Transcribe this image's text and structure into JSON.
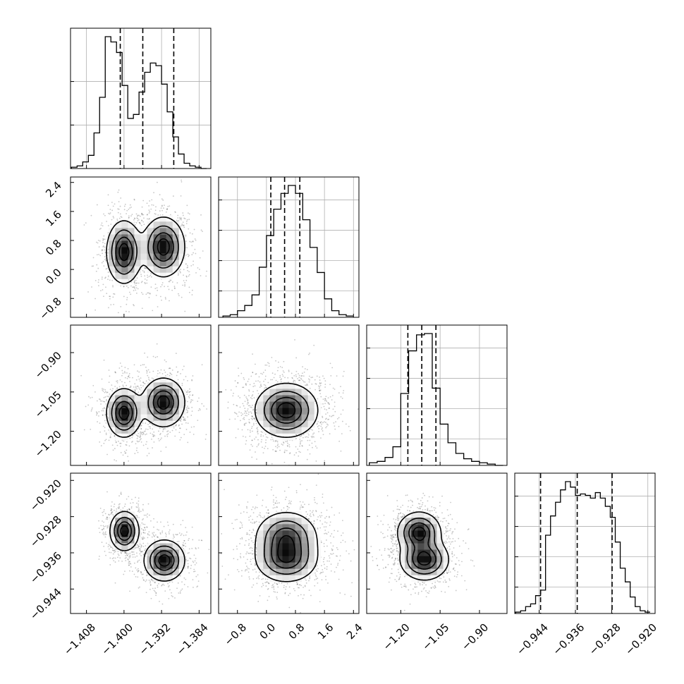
{
  "chart_data": {
    "type": "corner",
    "title": "",
    "grid": true,
    "parameters": [
      {
        "range": [
          -1.4114,
          -1.3815
        ],
        "ticks": [
          -1.408,
          -1.4,
          -1.392,
          -1.384
        ],
        "tick_labels": [
          "−1.408",
          "−1.400",
          "−1.392",
          "−1.384"
        ]
      },
      {
        "range": [
          -1.32,
          2.55
        ],
        "ticks": [
          -0.8,
          0.0,
          0.8,
          1.6,
          2.4
        ],
        "tick_labels": [
          "−0.8",
          "0.0",
          "0.8",
          "1.6",
          "2.4"
        ]
      },
      {
        "range": [
          -1.33,
          -0.795
        ],
        "ticks": [
          -1.2,
          -1.05,
          -0.9
        ],
        "tick_labels": [
          "−1.20",
          "−1.05",
          "−0.90"
        ]
      },
      {
        "range": [
          -0.9494,
          -0.9184
        ],
        "ticks": [
          -0.944,
          -0.936,
          -0.928,
          -0.92
        ],
        "tick_labels": [
          "−0.944",
          "−0.936",
          "−0.928",
          "−0.920"
        ]
      }
    ],
    "histograms": [
      {
        "bins": [
          -1.4112,
          -1.41,
          -1.4088,
          -1.4076,
          -1.4064,
          -1.4052,
          -1.404,
          -1.4028,
          -1.4016,
          -1.4004,
          -1.3992,
          -1.398,
          -1.3968,
          -1.3956,
          -1.3944,
          -1.3932,
          -1.392,
          -1.3908,
          -1.3896,
          -1.3884,
          -1.3872,
          -1.386,
          -1.3848,
          -1.3836,
          -1.3824
        ],
        "counts": [
          0.01,
          0.02,
          0.05,
          0.1,
          0.27,
          0.54,
          1.0,
          0.96,
          0.88,
          0.63,
          0.38,
          0.41,
          0.58,
          0.73,
          0.8,
          0.78,
          0.64,
          0.43,
          0.24,
          0.11,
          0.04,
          0.02,
          0.01,
          0.0
        ],
        "quantiles": [
          -1.4008,
          -1.396,
          -1.3894
        ]
      },
      {
        "bins": [
          -1.2,
          -1.0,
          -0.8,
          -0.6,
          -0.4,
          -0.2,
          0.0,
          0.2,
          0.4,
          0.6,
          0.8,
          1.0,
          1.2,
          1.4,
          1.6,
          1.8,
          2.0,
          2.2,
          2.4
        ],
        "counts": [
          0.01,
          0.02,
          0.05,
          0.09,
          0.17,
          0.38,
          0.62,
          0.82,
          0.94,
          1.0,
          0.94,
          0.74,
          0.53,
          0.34,
          0.14,
          0.05,
          0.02,
          0.01
        ],
        "quantiles": [
          0.12,
          0.5,
          0.92
        ]
      },
      {
        "bins": [
          -1.32,
          -1.29,
          -1.26,
          -1.23,
          -1.2,
          -1.17,
          -1.14,
          -1.11,
          -1.08,
          -1.05,
          -1.02,
          -0.99,
          -0.96,
          -0.93,
          -0.9,
          -0.87,
          -0.84,
          -0.81
        ],
        "counts": [
          0.02,
          0.03,
          0.06,
          0.14,
          0.54,
          0.86,
          0.98,
          0.99,
          0.58,
          0.31,
          0.17,
          0.09,
          0.05,
          0.03,
          0.02,
          0.01,
          0.0
        ],
        "quantiles": [
          -1.173,
          -1.12,
          -1.066
        ]
      },
      {
        "bins": [
          -0.9492,
          -0.9481,
          -0.947,
          -0.9459,
          -0.9448,
          -0.9437,
          -0.9426,
          -0.9415,
          -0.9404,
          -0.9393,
          -0.9382,
          -0.9371,
          -0.936,
          -0.9349,
          -0.9338,
          -0.9327,
          -0.9316,
          -0.9305,
          -0.9294,
          -0.9283,
          -0.9272,
          -0.9261,
          -0.925,
          -0.9239,
          -0.9228,
          -0.9217,
          -0.9206,
          -0.9195
        ],
        "counts": [
          0.01,
          0.02,
          0.05,
          0.07,
          0.13,
          0.17,
          0.57,
          0.71,
          0.81,
          0.9,
          0.96,
          0.92,
          0.86,
          0.87,
          0.86,
          0.84,
          0.88,
          0.84,
          0.78,
          0.7,
          0.52,
          0.33,
          0.23,
          0.12,
          0.05,
          0.02,
          0.01
        ],
        "quantiles": [
          -0.9437,
          -0.9356,
          -0.9279
        ]
      }
    ],
    "pairs": [
      {
        "x": 0,
        "y": 1,
        "modes": [
          {
            "cx": -1.4,
            "cy": 0.48,
            "sx": 0.0018,
            "sy": 0.42
          },
          {
            "cx": -1.3916,
            "cy": 0.62,
            "sx": 0.0022,
            "sy": 0.4
          }
        ]
      },
      {
        "x": 0,
        "y": 2,
        "modes": [
          {
            "cx": -1.4,
            "cy": -1.13,
            "sx": 0.0018,
            "sy": 0.045
          },
          {
            "cx": -1.3916,
            "cy": -1.09,
            "sx": 0.0022,
            "sy": 0.045
          }
        ]
      },
      {
        "x": 1,
        "y": 2,
        "modes": [
          {
            "cx": 0.55,
            "cy": -1.12,
            "sx": 0.42,
            "sy": 0.05
          }
        ]
      },
      {
        "x": 0,
        "y": 3,
        "modes": [
          {
            "cx": -1.3999,
            "cy": -0.9312,
            "sx": 0.0015,
            "sy": 0.0021
          },
          {
            "cx": -1.3914,
            "cy": -0.9377,
            "sx": 0.0021,
            "sy": 0.0022
          }
        ]
      },
      {
        "x": 1,
        "y": 3,
        "modes": [
          {
            "cx": 0.55,
            "cy": -0.9325,
            "sx": 0.42,
            "sy": 0.0028
          },
          {
            "cx": 0.55,
            "cy": -0.9375,
            "sx": 0.42,
            "sy": 0.0025
          }
        ]
      },
      {
        "x": 2,
        "y": 3,
        "modes": [
          {
            "cx": -1.13,
            "cy": -0.9315,
            "sx": 0.04,
            "sy": 0.0022
          },
          {
            "cx": -1.11,
            "cy": -0.9375,
            "sx": 0.045,
            "sy": 0.0022
          }
        ]
      }
    ]
  }
}
